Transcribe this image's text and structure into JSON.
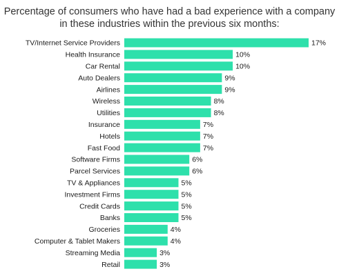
{
  "chart_data": {
    "type": "bar",
    "orientation": "horizontal",
    "title_lines": [
      "Percentage of consumers who have had a bad experience with a company",
      "in these industries within the previous six months:"
    ],
    "categories": [
      "TV/Internet Service Providers",
      "Health Insurance",
      "Car Rental",
      "Auto Dealers",
      "Airlines",
      "Wireless",
      "Utilities",
      "Insurance",
      "Hotels",
      "Fast Food",
      "Software Firms",
      "Parcel Services",
      "TV & Appliances",
      "Investment Firms",
      "Credit Cards",
      "Banks",
      "Groceries",
      "Computer & Tablet Makers",
      "Streaming Media",
      "Retail"
    ],
    "values": [
      17,
      10,
      10,
      9,
      9,
      8,
      8,
      7,
      7,
      7,
      6,
      6,
      5,
      5,
      5,
      5,
      4,
      4,
      3,
      3
    ],
    "value_labels": [
      "17%",
      "10%",
      "10%",
      "9%",
      "9%",
      "8%",
      "8%",
      "7%",
      "7%",
      "7%",
      "6%",
      "6%",
      "5%",
      "5%",
      "5%",
      "5%",
      "4%",
      "4%",
      "3%",
      "3%"
    ],
    "xlim": [
      0,
      17
    ],
    "grid": false,
    "legend": "none",
    "bar_color": "#2ee0ab"
  }
}
